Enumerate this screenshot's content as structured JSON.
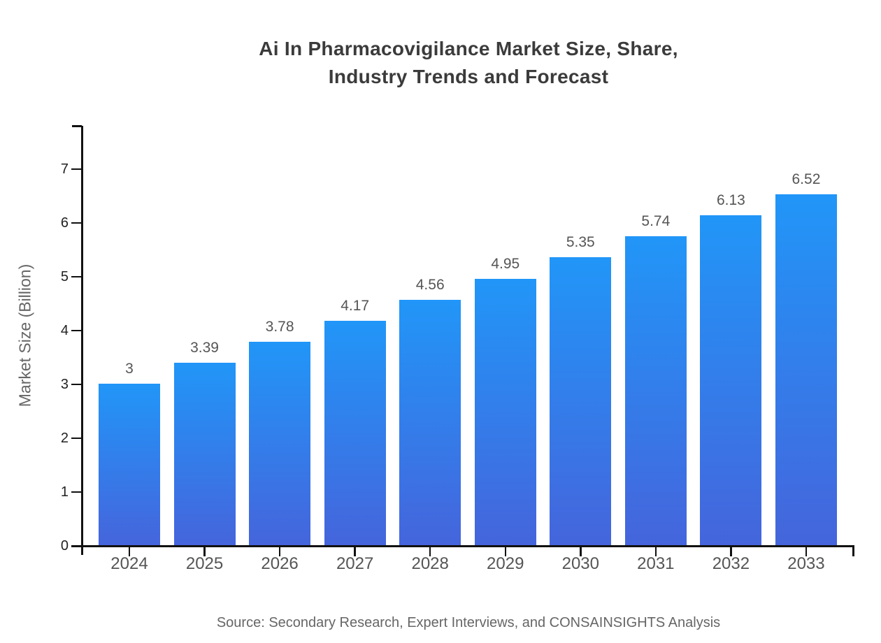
{
  "title": {
    "line1": "Ai In Pharmacovigilance Market Size, Share,",
    "line2": "Industry Trends and Forecast"
  },
  "source": "Source: Secondary Research, Expert Interviews, and CONSAINSIGHTS Analysis",
  "chart_data": {
    "type": "bar",
    "title": "Ai In Pharmacovigilance Market Size, Share, Industry Trends and Forecast",
    "categories": [
      "2024",
      "2025",
      "2026",
      "2027",
      "2028",
      "2029",
      "2030",
      "2031",
      "2032",
      "2033"
    ],
    "values": [
      3,
      3.39,
      3.78,
      4.17,
      4.56,
      4.95,
      5.35,
      5.74,
      6.13,
      6.52
    ],
    "value_labels": [
      "3",
      "3.39",
      "3.78",
      "4.17",
      "4.56",
      "4.95",
      "5.35",
      "5.74",
      "6.13",
      "6.52"
    ],
    "xlabel": "",
    "ylabel": "Market Size (Billion)",
    "ylim": [
      0,
      7.8
    ],
    "yticks": [
      0,
      1,
      2,
      3,
      4,
      5,
      6,
      7
    ],
    "grid": false,
    "legend": null,
    "bar_color_top": "#2196F8",
    "bar_color_bottom": "#4565DC"
  },
  "colors": {
    "title_text": "#3b3b3b",
    "axis": "#111111",
    "tick_label": "#555555",
    "source_text": "#666666"
  }
}
